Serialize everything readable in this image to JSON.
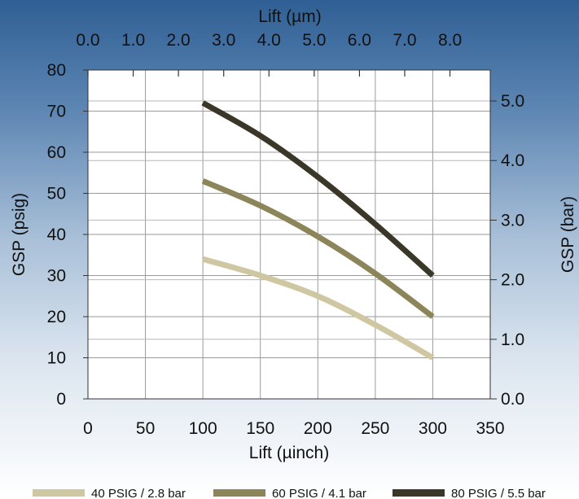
{
  "chart_data": {
    "type": "line",
    "x_axis_bottom": {
      "label": "Lift (µinch)",
      "range": [
        0,
        350
      ],
      "ticks": [
        "0",
        "50",
        "100",
        "150",
        "200",
        "250",
        "300",
        "350"
      ]
    },
    "x_axis_top": {
      "label": "Lift (µm)",
      "range": [
        0,
        8.89
      ],
      "ticks": [
        "0.0",
        "1.0",
        "2.0",
        "3.0",
        "4.0",
        "5.0",
        "6.0",
        "7.0",
        "8.0"
      ]
    },
    "y_axis_left": {
      "label": "GSP (psig)",
      "range": [
        0,
        80
      ],
      "ticks": [
        "0",
        "10",
        "20",
        "30",
        "40",
        "50",
        "60",
        "70",
        "80"
      ]
    },
    "y_axis_right": {
      "label": "GSP (bar)",
      "range": [
        0,
        5.52
      ],
      "ticks": [
        "0.0",
        "1.0",
        "2.0",
        "3.0",
        "4.0",
        "5.0"
      ]
    },
    "grid": true,
    "legend_position": "bottom",
    "series": [
      {
        "name": "40 PSIG / 2.8 bar",
        "color": "#cfc6a2",
        "x": [
          100,
          150,
          200,
          250,
          300
        ],
        "y": [
          34,
          30,
          25,
          18,
          10
        ]
      },
      {
        "name": "60 PSIG / 4.1 bar",
        "color": "#8c8559",
        "x": [
          100,
          150,
          200,
          250,
          300
        ],
        "y": [
          53,
          47,
          39.5,
          30.5,
          20
        ]
      },
      {
        "name": "80 PSIG / 5.5 bar",
        "color": "#3b3728",
        "x": [
          100,
          150,
          200,
          250,
          300
        ],
        "y": [
          72,
          64,
          54,
          42.5,
          30
        ]
      }
    ]
  }
}
